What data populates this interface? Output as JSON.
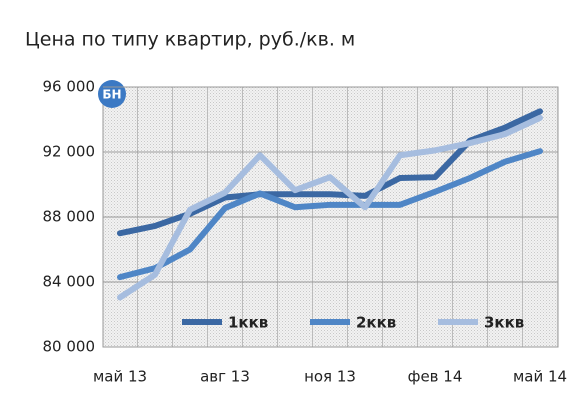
{
  "logo": "БН",
  "chart_data": {
    "type": "line",
    "title": "Цена по типу квартир, руб./кв. м",
    "categories": [
      "май 13",
      null,
      null,
      "авг 13",
      null,
      null,
      "ноя 13",
      null,
      null,
      "фев 14",
      null,
      null,
      "май 14"
    ],
    "series": [
      {
        "name": "1ккв",
        "color": "#3b68a3",
        "values": [
          87000,
          87450,
          88200,
          89200,
          89400,
          89400,
          89400,
          89300,
          90400,
          90450,
          92700,
          93500,
          94500
        ]
      },
      {
        "name": "2ккв",
        "color": "#4f86c6",
        "values": [
          84300,
          84850,
          86000,
          88550,
          89450,
          88600,
          88750,
          88750,
          88750,
          89550,
          90400,
          91400,
          92050
        ]
      },
      {
        "name": "3ккв",
        "color": "#a6bddf",
        "values": [
          83050,
          84450,
          88450,
          89500,
          91800,
          89650,
          90450,
          88600,
          91800,
          92100,
          92550,
          93100,
          94100
        ]
      }
    ],
    "ylim": [
      80000,
      96000
    ],
    "yticks": [
      {
        "value": 80000,
        "label": "80 000"
      },
      {
        "value": 84000,
        "label": "84 000"
      },
      {
        "value": 88000,
        "label": "88 000"
      },
      {
        "value": 92000,
        "label": "92 000"
      },
      {
        "value": 96000,
        "label": "96 000"
      }
    ],
    "grid": true,
    "legend": "bottom"
  }
}
